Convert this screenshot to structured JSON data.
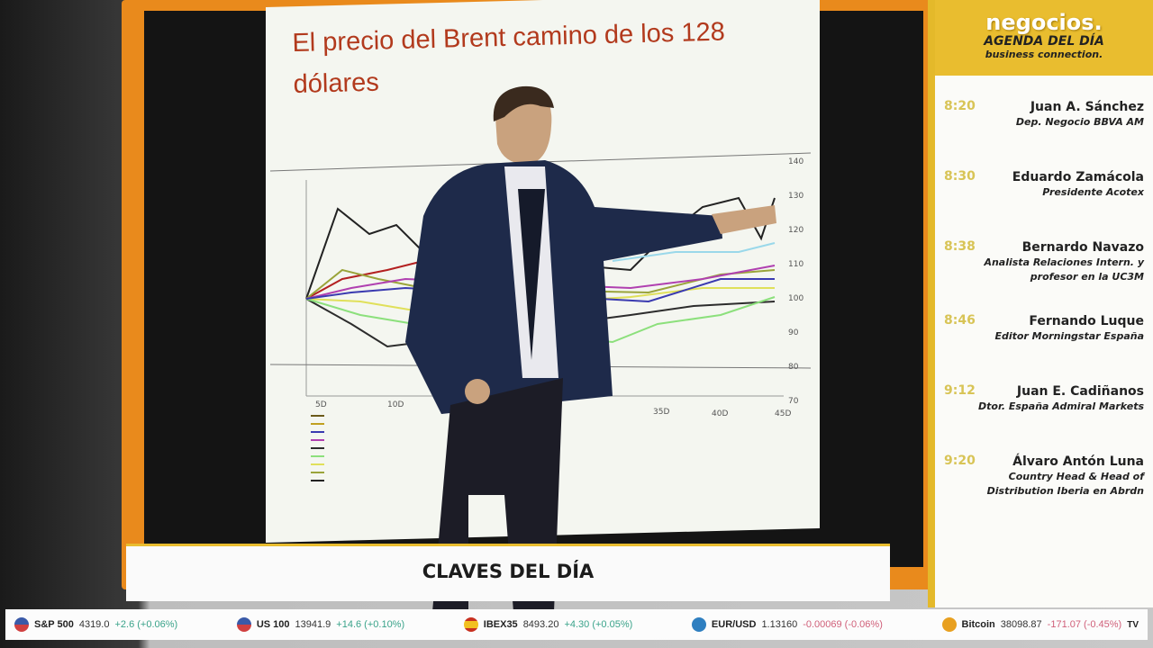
{
  "screen": {
    "title": "El precio del Brent camino de los 128 dólares",
    "y_ticks": [
      "140",
      "130",
      "120",
      "110",
      "100",
      "90",
      "80",
      "70"
    ],
    "x_ticks": [
      "5D",
      "10D",
      "35D",
      "40D",
      "45D"
    ]
  },
  "agenda": {
    "brand": "negocios",
    "brand_dot": ".",
    "title": "AGENDA DEL DÍA",
    "subtitle": "business connection.",
    "items": [
      {
        "time": "8:20",
        "name": "Juan A. Sánchez",
        "role": "Dep. Negocio BBVA AM"
      },
      {
        "time": "8:30",
        "name": "Eduardo Zamácola",
        "role": "Presidente Acotex"
      },
      {
        "time": "8:38",
        "name": "Bernardo Navazo",
        "role": "Analista Relaciones Intern. y profesor en la UC3M"
      },
      {
        "time": "8:46",
        "name": "Fernando Luque",
        "role": "Editor Morningstar España"
      },
      {
        "time": "9:12",
        "name": "Juan E. Cadiñanos",
        "role": "Dtor. España Admiral Markets"
      },
      {
        "time": "9:20",
        "name": "Álvaro Antón Luna",
        "role": "Country Head & Head of Distribution Iberia en Abrdn"
      }
    ]
  },
  "lower_third": {
    "title": "CLAVES DEL DÍA"
  },
  "ticker": {
    "items": [
      {
        "symbol": "S&P 500",
        "value": "4319.0",
        "change": "+2.6 (+0.06%)",
        "dir": "up",
        "icon": "us-flag-icon",
        "color": "#3a5aa8"
      },
      {
        "symbol": "US 100",
        "value": "13941.9",
        "change": "+14.6 (+0.10%)",
        "dir": "up",
        "icon": "us-flag-icon",
        "color": "#3a5aa8"
      },
      {
        "symbol": "IBEX35",
        "value": "8493.20",
        "change": "+4.30 (+0.05%)",
        "dir": "up",
        "icon": "spain-flag-icon",
        "color": "#e8a020"
      },
      {
        "symbol": "EUR/USD",
        "value": "1.13160",
        "change": "-0.00069 (-0.06%)",
        "dir": "down",
        "icon": "globe-icon",
        "color": "#2f7fc0"
      },
      {
        "symbol": "Bitcoin",
        "value": "38098.87",
        "change": "-171.07 (-0.45%)",
        "dir": "down",
        "icon": "bitcoin-icon",
        "color": "#e8a020"
      }
    ],
    "logo": "TV"
  }
}
